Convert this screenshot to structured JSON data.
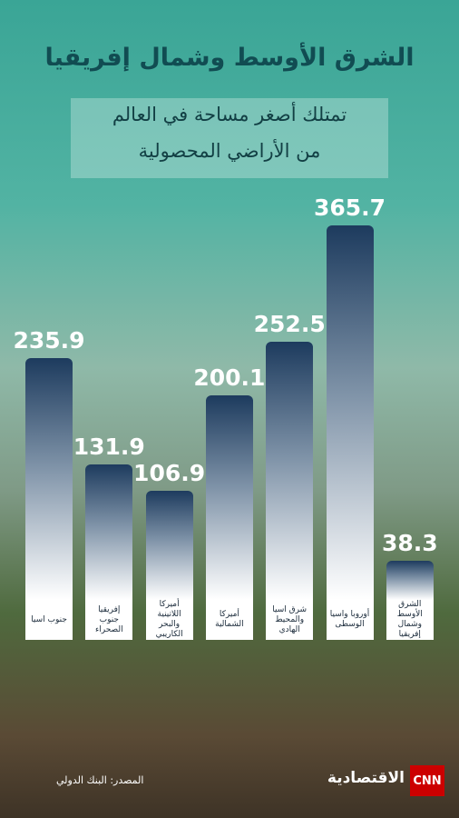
{
  "chart_data": {
    "type": "bar",
    "title": "الشرق الأوسط وشمال إفريقيا",
    "subtitle": [
      "تمتلك أصغر مساحة في العالم",
      "من الأراضي المحصولية"
    ],
    "categories": [
      "جنوب اسيا",
      "إفريقيا جنوب الصحراء",
      "أميركا اللاتينية والبحر الكاريبي",
      "أميركا الشمالية",
      "شرق اسيا والمحيط الهادي",
      "أوروبا واسيا الوسطى",
      "الشرق الأوسط وشمال إفريقيا"
    ],
    "values": [
      235.9,
      131.9,
      106.9,
      200.1,
      252.5,
      365.7,
      38.3
    ],
    "color": "#1d3b5e"
  },
  "source": "المصدر: البنك الدولي",
  "logo": {
    "cnn": "CNN",
    "brand": "الاقتصادية"
  }
}
